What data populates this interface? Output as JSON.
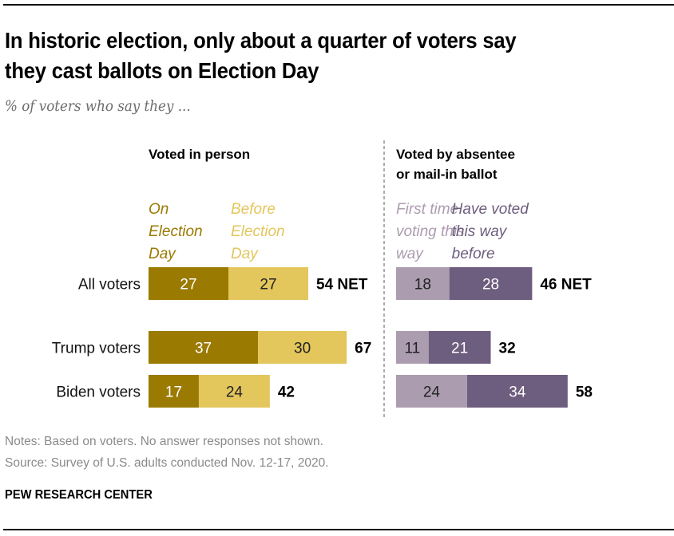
{
  "header": {
    "title_line1": "In historic election, only about a quarter of voters say",
    "title_line2": "they cast ballots on Election Day",
    "subtitle": "% of voters who say they ..."
  },
  "chart_data": {
    "type": "bar",
    "orientation": "horizontal-stacked",
    "title": "In historic election, only about a quarter of voters say they cast ballots on Election Day",
    "subtitle": "% of voters who say they ...",
    "categories": [
      "All voters",
      "Trump voters",
      "Biden voters"
    ],
    "panels": [
      {
        "heading": [
          "Voted in person"
        ],
        "series": [
          {
            "name": "On Election Day",
            "label_lines": [
              "On",
              "Election",
              "Day"
            ],
            "color": "#9a7a00",
            "label_text_color": "#ffffff",
            "values": [
              27,
              37,
              17
            ]
          },
          {
            "name": "Before Election Day",
            "label_lines": [
              "Before",
              "Election",
              "Day"
            ],
            "color": "#e3c65c",
            "label_text_color": "#222222",
            "values": [
              27,
              30,
              24
            ]
          }
        ],
        "totals": [
          "54 NET",
          "67",
          "42"
        ]
      },
      {
        "heading": [
          "Voted by absentee",
          "or mail-in ballot"
        ],
        "series": [
          {
            "name": "First time voting this way",
            "label_lines": [
              "First time",
              "voting this",
              "way"
            ],
            "color": "#ac9cb0",
            "label_text_color": "#222222",
            "values": [
              18,
              11,
              24
            ]
          },
          {
            "name": "Have voted this way before",
            "label_lines": [
              "Have voted",
              "this way",
              "before"
            ],
            "color": "#6d5d7e",
            "label_text_color": "#ffffff",
            "values": [
              28,
              21,
              34
            ]
          }
        ],
        "totals": [
          "46 NET",
          "32",
          "58"
        ]
      }
    ],
    "xlabel": "",
    "ylabel": "",
    "grid": false,
    "legend": "inline-above-bars",
    "divider": "dashed-vertical-between-panels"
  },
  "footer": {
    "notes": "Notes: Based on voters. No answer responses not shown.",
    "source": "Source: Survey of U.S. adults conducted Nov. 12-17, 2020.",
    "brand": "PEW RESEARCH CENTER"
  }
}
